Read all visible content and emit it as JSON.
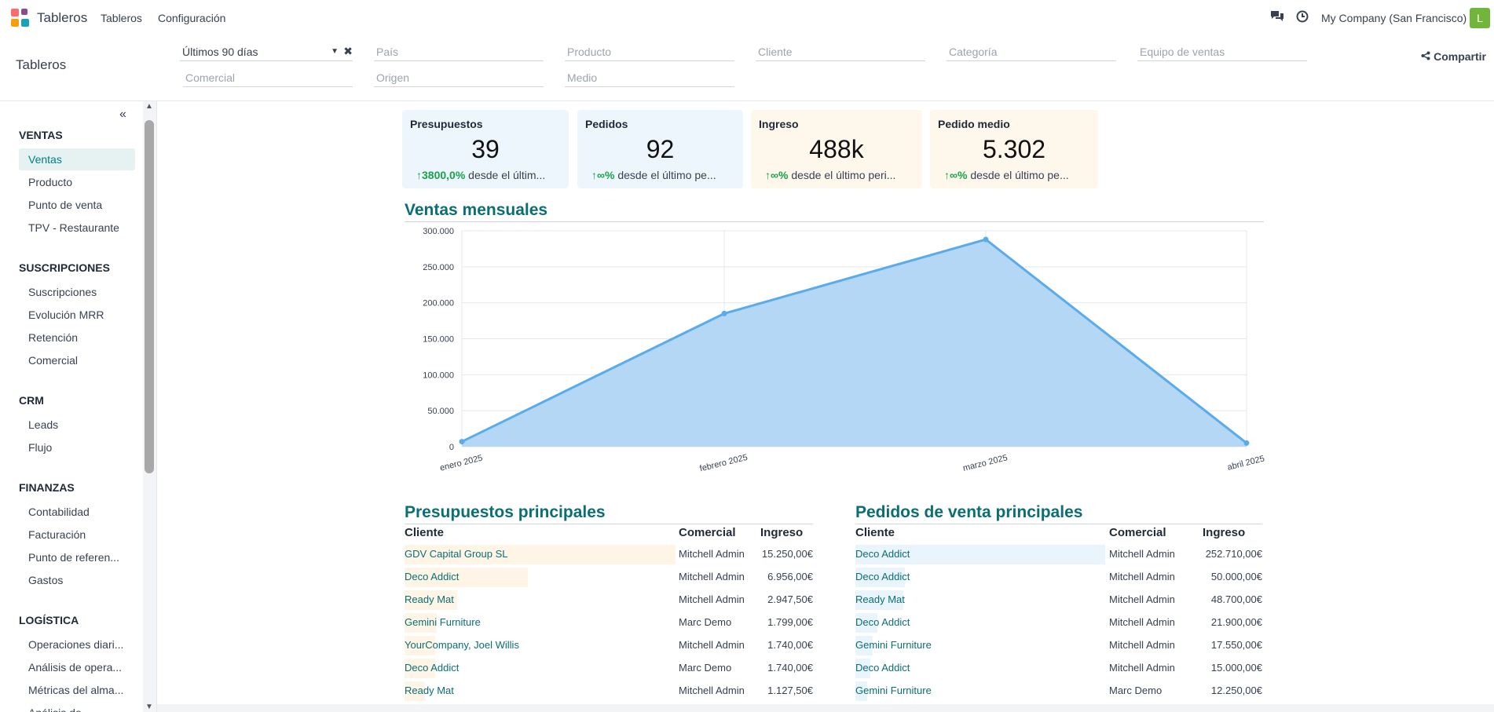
{
  "navbar": {
    "brand": "Tableros",
    "menu": [
      "Tableros",
      "Configuración"
    ],
    "company": "My Company (San Francisco)",
    "avatar_letter": "L"
  },
  "control_panel": {
    "title": "Tableros",
    "date_filter": "Últimos 90 días",
    "filters": [
      "País",
      "Producto",
      "Cliente",
      "Categoría",
      "Equipo de ventas",
      "Comercial",
      "Origen",
      "Medio"
    ],
    "share_label": "Compartir"
  },
  "sidebar": {
    "collapse_icon": "«",
    "sections": [
      {
        "title": "VENTAS",
        "items": [
          "Ventas",
          "Producto",
          "Punto de venta",
          "TPV - Restaurante"
        ]
      },
      {
        "title": "SUSCRIPCIONES",
        "items": [
          "Suscripciones",
          "Evolución MRR",
          "Retención",
          "Comercial"
        ]
      },
      {
        "title": "CRM",
        "items": [
          "Leads",
          "Flujo"
        ]
      },
      {
        "title": "FINANZAS",
        "items": [
          "Contabilidad",
          "Facturación",
          "Punto de referen...",
          "Gastos"
        ]
      },
      {
        "title": "LOGÍSTICA",
        "items": [
          "Operaciones diari...",
          "Análisis de opera...",
          "Métricas del alma...",
          "Análisis de..."
        ]
      }
    ],
    "active_item": "Ventas"
  },
  "kpis": [
    {
      "title": "Presupuestos",
      "value": "39",
      "trend": "3800,0%",
      "trend_text": "desde el últim...",
      "color": "#eef6fd"
    },
    {
      "title": "Pedidos",
      "value": "92",
      "trend": "∞%",
      "trend_text": "desde el último pe...",
      "color": "#eef6fd"
    },
    {
      "title": "Ingreso",
      "value": "488k",
      "trend": "∞%",
      "trend_text": "desde el último peri...",
      "color": "#fef7ec"
    },
    {
      "title": "Pedido medio",
      "value": "5.302",
      "trend": "∞%",
      "trend_text": "desde el último pe...",
      "color": "#fef7ec"
    }
  ],
  "chart_title": "Ventas mensuales",
  "chart_data": {
    "type": "area",
    "x": [
      "enero 2025",
      "febrero 2025",
      "marzo 2025",
      "abril 2025"
    ],
    "series": [
      {
        "values": [
          7000,
          185000,
          288000,
          5000
        ]
      }
    ],
    "yticks": [
      "0",
      "50.000",
      "100.000",
      "150.000",
      "200.000",
      "250.000",
      "300.000"
    ],
    "ylim": [
      0,
      300000
    ],
    "grid": true,
    "line_color": "#5aabec",
    "fill_color": "#b3d7f5"
  },
  "tables": [
    {
      "title": "Presupuestos principales",
      "headers": [
        "Cliente",
        "Comercial",
        "Ingreso"
      ],
      "bar_color": "#fef5e7",
      "max": 15250,
      "rows": [
        {
          "client": "GDV Capital Group SL",
          "salesperson": "Mitchell Admin",
          "amount": "15.250,00€",
          "value": 15250
        },
        {
          "client": "Deco Addict",
          "salesperson": "Mitchell Admin",
          "amount": "6.956,00€",
          "value": 6956
        },
        {
          "client": "Ready Mat",
          "salesperson": "Mitchell Admin",
          "amount": "2.947,50€",
          "value": 2947.5
        },
        {
          "client": "Gemini Furniture",
          "salesperson": "Marc Demo",
          "amount": "1.799,00€",
          "value": 1799
        },
        {
          "client": "YourCompany, Joel Willis",
          "salesperson": "Mitchell Admin",
          "amount": "1.740,00€",
          "value": 1740
        },
        {
          "client": "Deco Addict",
          "salesperson": "Marc Demo",
          "amount": "1.740,00€",
          "value": 1740
        },
        {
          "client": "Ready Mat",
          "salesperson": "Mitchell Admin",
          "amount": "1.127,50€",
          "value": 1127.5
        }
      ]
    },
    {
      "title": "Pedidos de venta principales",
      "headers": [
        "Cliente",
        "Comercial",
        "Ingreso"
      ],
      "bar_color": "#eaf4fd",
      "max": 252710,
      "rows": [
        {
          "client": "Deco Addict",
          "salesperson": "Mitchell Admin",
          "amount": "252.710,00€",
          "value": 252710
        },
        {
          "client": "Deco Addict",
          "salesperson": "Mitchell Admin",
          "amount": "50.000,00€",
          "value": 50000
        },
        {
          "client": "Ready Mat",
          "salesperson": "Mitchell Admin",
          "amount": "48.700,00€",
          "value": 48700
        },
        {
          "client": "Deco Addict",
          "salesperson": "Mitchell Admin",
          "amount": "21.900,00€",
          "value": 21900
        },
        {
          "client": "Gemini Furniture",
          "salesperson": "Mitchell Admin",
          "amount": "17.550,00€",
          "value": 17550
        },
        {
          "client": "Deco Addict",
          "salesperson": "Mitchell Admin",
          "amount": "15.000,00€",
          "value": 15000
        },
        {
          "client": "Gemini Furniture",
          "salesperson": "Marc Demo",
          "amount": "12.250,00€",
          "value": 12250
        }
      ]
    }
  ]
}
